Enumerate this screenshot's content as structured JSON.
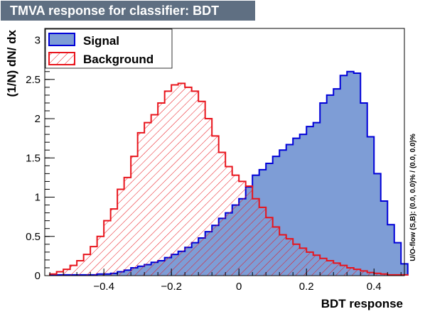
{
  "title": "TMVA response for classifier: BDT",
  "colors": {
    "signal_fill": "#7e9dd6",
    "signal_line": "#0000d8",
    "background_line": "#e8141c",
    "title_bg": "#5f6f82"
  },
  "chart_data": {
    "type": "histogram",
    "title": "TMVA response for classifier: BDT",
    "xlabel": "BDT response",
    "ylabel": "(1/N) dN/ dx",
    "xlim": [
      -0.575,
      0.49
    ],
    "ylim": [
      0,
      3.15
    ],
    "bin_width": 0.02,
    "x_ticks": [
      "−0.4",
      "−0.2",
      "0",
      "0.2",
      "0.4"
    ],
    "x_tick_values": [
      -0.4,
      -0.2,
      0,
      0.2,
      0.4
    ],
    "y_ticks": [
      "0",
      "0.5",
      "1",
      "1.5",
      "2",
      "2.5",
      "3"
    ],
    "y_tick_values": [
      0,
      0.5,
      1,
      1.5,
      2,
      2.5,
      3
    ],
    "side_label": "U/O-flow (S,B): (0.0, 0.0)% / (0.0, 0.0)%",
    "legend": {
      "position": "top-left",
      "entries": [
        "Signal",
        "Background"
      ]
    },
    "series": [
      {
        "name": "Signal",
        "style": "solid fill",
        "bin_edges_start": -0.56,
        "values": [
          0.01,
          0.01,
          0.01,
          0.01,
          0.01,
          0.01,
          0.01,
          0.02,
          0.02,
          0.03,
          0.05,
          0.07,
          0.1,
          0.12,
          0.14,
          0.17,
          0.19,
          0.23,
          0.27,
          0.31,
          0.36,
          0.42,
          0.48,
          0.56,
          0.64,
          0.73,
          0.8,
          0.9,
          0.98,
          1.13,
          1.28,
          1.35,
          1.43,
          1.52,
          1.6,
          1.67,
          1.75,
          1.8,
          1.9,
          1.95,
          2.2,
          2.3,
          2.38,
          2.55,
          2.6,
          2.58,
          2.2,
          1.77,
          1.3,
          0.95,
          0.65,
          0.42,
          0.15
        ]
      },
      {
        "name": "Background",
        "style": "red hatched",
        "bin_edges_start": -0.56,
        "values": [
          0.02,
          0.05,
          0.08,
          0.13,
          0.19,
          0.27,
          0.37,
          0.5,
          0.7,
          0.85,
          1.1,
          1.25,
          1.52,
          1.82,
          1.95,
          2.05,
          2.2,
          2.35,
          2.43,
          2.45,
          2.4,
          2.35,
          2.22,
          2.0,
          1.78,
          1.57,
          1.39,
          1.28,
          1.2,
          1.14,
          0.98,
          0.87,
          0.74,
          0.62,
          0.52,
          0.47,
          0.4,
          0.35,
          0.3,
          0.26,
          0.22,
          0.19,
          0.16,
          0.13,
          0.1,
          0.08,
          0.06,
          0.04,
          0.03,
          0.02,
          0.01,
          0.01,
          0.01
        ]
      }
    ]
  }
}
